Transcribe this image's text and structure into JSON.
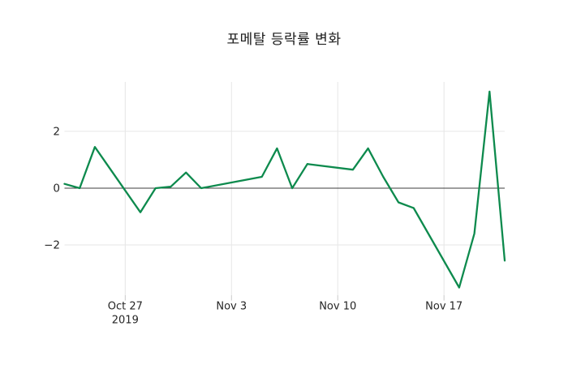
{
  "title": "포메탈 등락률 변화",
  "chart_data": {
    "type": "line",
    "title": "포메탈 등락률 변화",
    "xlabel": "",
    "ylabel": "",
    "x": [
      "2019-10-23",
      "2019-10-24",
      "2019-10-25",
      "2019-10-28",
      "2019-10-29",
      "2019-10-30",
      "2019-10-31",
      "2019-11-01",
      "2019-11-04",
      "2019-11-05",
      "2019-11-06",
      "2019-11-07",
      "2019-11-08",
      "2019-11-11",
      "2019-11-12",
      "2019-11-13",
      "2019-11-14",
      "2019-11-15",
      "2019-11-18",
      "2019-11-19",
      "2019-11-20",
      "2019-11-21"
    ],
    "values": [
      0.15,
      0.0,
      1.45,
      -0.85,
      0.0,
      0.05,
      0.55,
      0.0,
      0.3,
      0.4,
      1.4,
      0.0,
      0.85,
      0.65,
      1.4,
      0.4,
      -0.5,
      -0.7,
      -3.5,
      -1.6,
      3.4,
      -2.55
    ],
    "ylim": [
      -3.77,
      3.74
    ],
    "yticks": [
      -2,
      0,
      2
    ],
    "ytick_labels": [
      "−2",
      "0",
      "2"
    ],
    "xticks": [
      "2019-10-27",
      "2019-11-03",
      "2019-11-10",
      "2019-11-17"
    ],
    "xtick_labels": [
      [
        "Oct 27",
        "2019"
      ],
      [
        "Nov 3"
      ],
      [
        "Nov 10"
      ],
      [
        "Nov 17"
      ]
    ],
    "grid": true,
    "zeroline": true,
    "legend_position": "none",
    "style": {
      "line_color": "#0d8a4d",
      "line_width": 2.3,
      "grid_color": "#e6e6e6",
      "zeroline_color": "#3c3c3c",
      "tick_color": "#c9c9c9",
      "text_color": "#262626",
      "background": "#ffffff"
    }
  }
}
